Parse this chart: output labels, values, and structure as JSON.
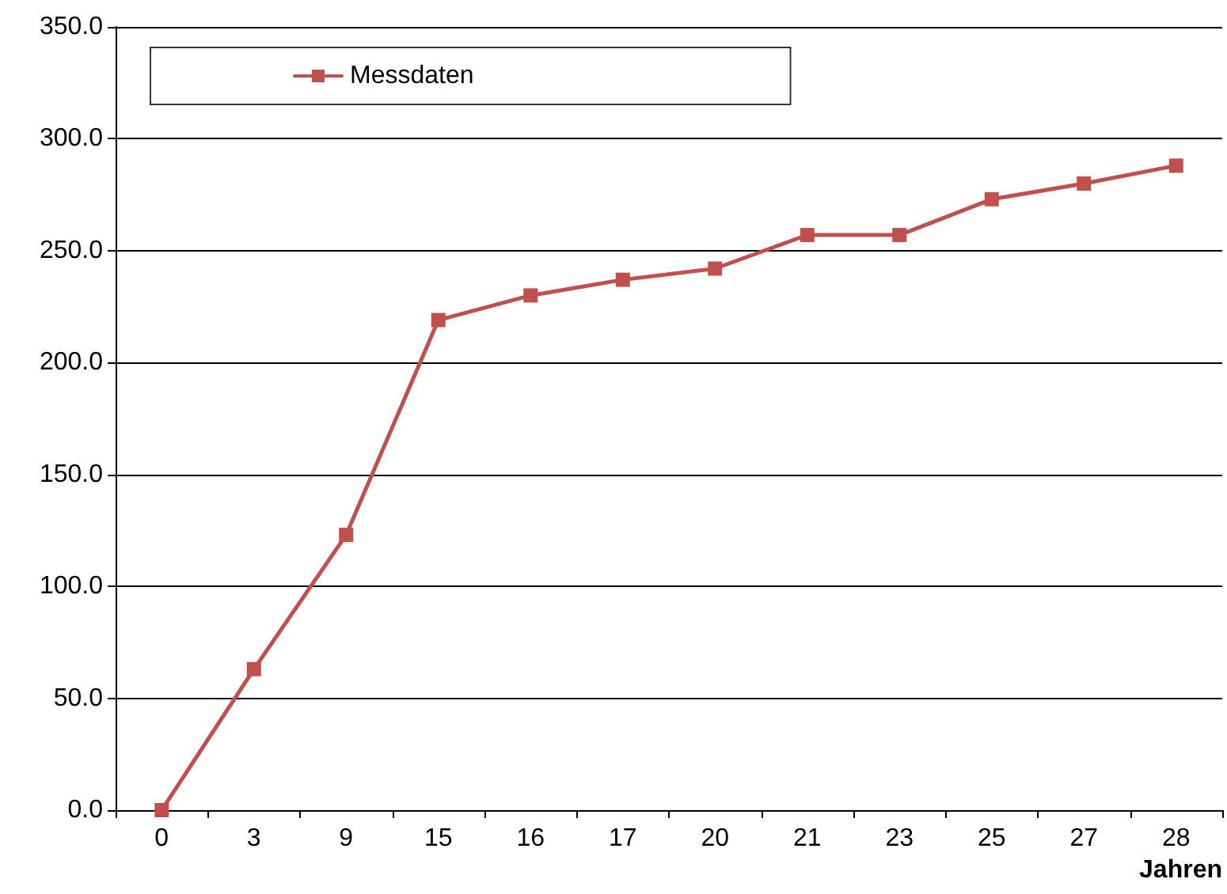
{
  "chart_data": {
    "type": "line",
    "xlabel": "Jahren",
    "categories": [
      "0",
      "3",
      "9",
      "15",
      "16",
      "17",
      "20",
      "21",
      "23",
      "25",
      "27",
      "28"
    ],
    "series": [
      {
        "name": "Messdaten",
        "color": "#c0504d",
        "values": [
          0,
          63,
          123,
          219,
          230,
          237,
          242,
          257,
          257,
          273,
          280,
          288
        ]
      }
    ],
    "ylim": [
      0,
      350
    ],
    "yticks": [
      {
        "value": 0,
        "label": "0.0"
      },
      {
        "value": 50,
        "label": "50.0"
      },
      {
        "value": 100,
        "label": "100.0"
      },
      {
        "value": 150,
        "label": "150.0"
      },
      {
        "value": 200,
        "label": "200.0"
      },
      {
        "value": 250,
        "label": "250.0"
      },
      {
        "value": 300,
        "label": "300.0"
      },
      {
        "value": 350,
        "label": "350.0"
      }
    ],
    "grid": "y",
    "legend": "top left",
    "marker": "square",
    "line_style": "solid"
  }
}
